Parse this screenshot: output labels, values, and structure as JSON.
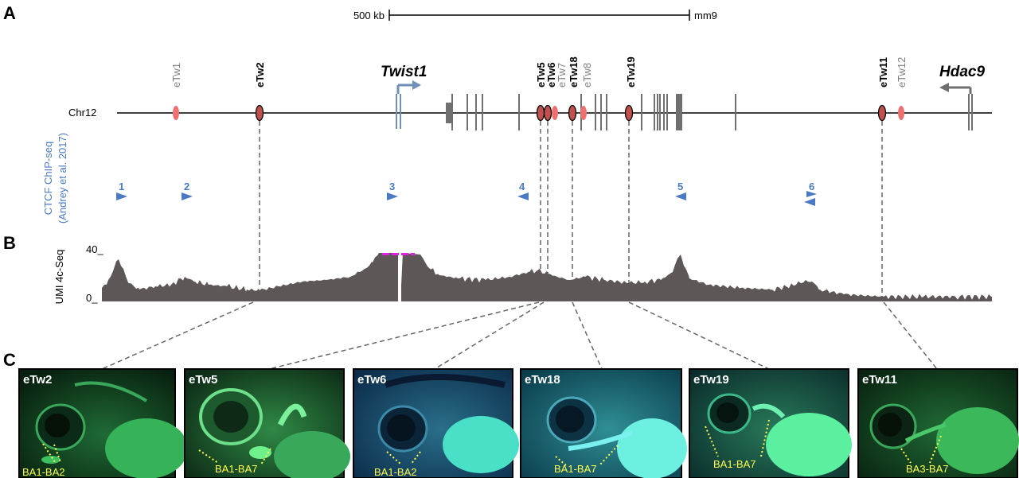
{
  "panels": {
    "a": "A",
    "b": "B",
    "c": "C"
  },
  "scale_bar": {
    "left_label": "500 kb",
    "right_label": "mm9"
  },
  "chromosome": {
    "label": "Chr12"
  },
  "genes": {
    "twist1": "Twist1",
    "hdac9": "Hdac9"
  },
  "elements": [
    {
      "name": "eTw1",
      "bold": false
    },
    {
      "name": "eTw2",
      "bold": true
    },
    {
      "name": "eTw5",
      "bold": true
    },
    {
      "name": "eTw6",
      "bold": true
    },
    {
      "name": "eTw7",
      "bold": false
    },
    {
      "name": "eTw8",
      "bold": false
    },
    {
      "name": "eTw18",
      "bold": true
    },
    {
      "name": "eTw19",
      "bold": true
    },
    {
      "name": "eTw11",
      "bold": true
    },
    {
      "name": "eTw12",
      "bold": false
    }
  ],
  "ctcf": {
    "label_line1": "CTCF ChIP-seq",
    "label_line2": "(Andrey et al. 2017)",
    "sites": [
      "1",
      "2",
      "3",
      "4",
      "5",
      "6"
    ]
  },
  "track": {
    "label": "UMI 4c-Seq",
    "ymax_label": "40_",
    "ymin_label": "0_"
  },
  "embryos": [
    {
      "label": "eTw2",
      "region": "BA1-BA2"
    },
    {
      "label": "eTw5",
      "region": "BA1-BA7"
    },
    {
      "label": "eTw6",
      "region": "BA1-BA2"
    },
    {
      "label": "eTw18",
      "region": "BA1-BA7"
    },
    {
      "label": "eTw19",
      "region": "BA1-BA7"
    },
    {
      "label": "eTw11",
      "region": "BA3-BA7"
    }
  ],
  "colors": {
    "enhancer_tested": "#c0504d",
    "enhancer_other": "#f07070",
    "ctcf": "#4a7ac3",
    "track_fill": "#5e5757",
    "highlight": "#e020e0",
    "twist1": "#7090b8",
    "hdac9": "#707070"
  }
}
